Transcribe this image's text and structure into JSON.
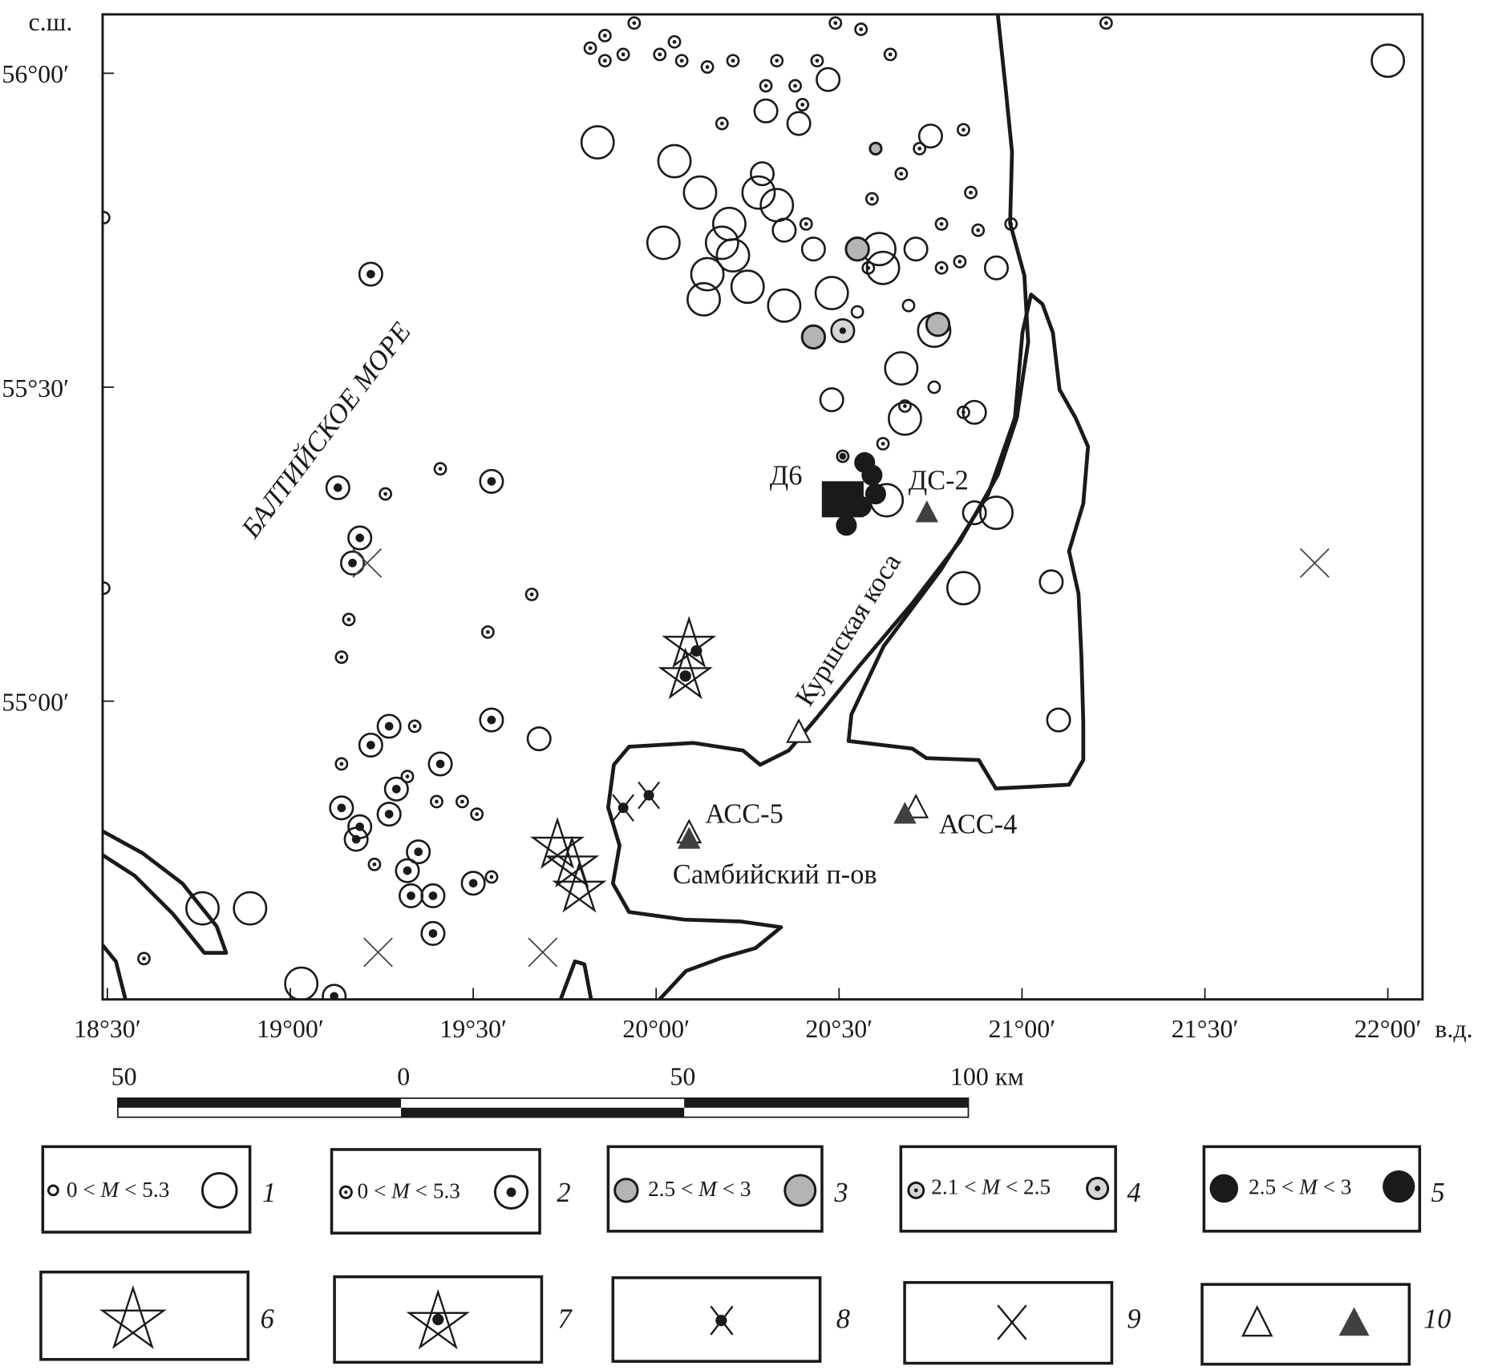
{
  "axes": {
    "lat_unit": "с.ш.",
    "lon_unit": "в.д.",
    "lat_ticks": [
      {
        "value": 56.0,
        "label": "56°00′"
      },
      {
        "value": 55.5,
        "label": "55°30′"
      },
      {
        "value": 55.0,
        "label": "55°00′"
      }
    ],
    "lon_ticks": [
      {
        "value": 18.5,
        "label": "18°30′"
      },
      {
        "value": 19.0,
        "label": "19°00′"
      },
      {
        "value": 19.5,
        "label": "19°30′"
      },
      {
        "value": 20.0,
        "label": "20°00′"
      },
      {
        "value": 20.5,
        "label": "20°30′"
      },
      {
        "value": 21.0,
        "label": "21°00′"
      },
      {
        "value": 21.5,
        "label": "21°30′"
      },
      {
        "value": 22.0,
        "label": "22°00′"
      }
    ]
  },
  "labels": {
    "sea": "БАЛТИЙСКОЕ МОРЕ",
    "spit": "Куршская коса",
    "peninsula": "Самбийский п-ов",
    "d6": "Д6",
    "ds2": "ДС-2",
    "acc5": "АСС-5",
    "acc4": "АСС-4"
  },
  "scale_bar": {
    "labels": [
      "50",
      "0",
      "50",
      "100 км"
    ]
  },
  "legend": [
    {
      "num": "1",
      "text_pre": "0 < ",
      "m": "M",
      "text_post": " < 5.3",
      "symbol": "open-circle"
    },
    {
      "num": "2",
      "text_pre": "0 < ",
      "m": "M",
      "text_post": " < 5.3",
      "symbol": "dot-circle"
    },
    {
      "num": "3",
      "text_pre": "2.5 < ",
      "m": "M",
      "text_post": " < 3",
      "symbol": "gray-circle"
    },
    {
      "num": "4",
      "text_pre": "2.1 < ",
      "m": "M",
      "text_post": " < 2.5",
      "symbol": "gray-dot-circle"
    },
    {
      "num": "5",
      "text_pre": "2.5 < ",
      "m": "M",
      "text_post": " < 3",
      "symbol": "black-circle"
    },
    {
      "num": "6",
      "symbol": "star"
    },
    {
      "num": "7",
      "symbol": "star-dot"
    },
    {
      "num": "8",
      "symbol": "cross-dot"
    },
    {
      "num": "9",
      "symbol": "cross"
    },
    {
      "num": "10",
      "symbol": "triangles"
    }
  ],
  "colors": {
    "ink": "#1a1a1a",
    "gray_fill": "#b4b4b4",
    "light_gray_fill": "#d6d6d6",
    "station_fill": "#404040"
  },
  "events": [
    [
      22.0,
      56.02,
      1,
      "l"
    ],
    [
      19.84,
      55.89,
      1,
      "l"
    ],
    [
      20.05,
      55.86,
      1,
      "l"
    ],
    [
      20.12,
      55.81,
      1,
      "l"
    ],
    [
      20.29,
      55.84,
      1,
      "m"
    ],
    [
      20.33,
      55.79,
      1,
      "l"
    ],
    [
      20.2,
      55.76,
      1,
      "l"
    ],
    [
      20.02,
      55.73,
      1,
      "l"
    ],
    [
      20.35,
      55.75,
      1,
      "m"
    ],
    [
      20.21,
      55.71,
      1,
      "l"
    ],
    [
      20.14,
      55.68,
      1,
      "l"
    ],
    [
      20.13,
      55.64,
      1,
      "l"
    ],
    [
      20.25,
      55.66,
      1,
      "l"
    ],
    [
      20.35,
      55.63,
      1,
      "l"
    ],
    [
      20.48,
      55.65,
      1,
      "l"
    ],
    [
      20.43,
      55.72,
      1,
      "m"
    ],
    [
      20.71,
      55.72,
      1,
      "m"
    ],
    [
      20.75,
      55.9,
      1,
      "m"
    ],
    [
      20.47,
      55.99,
      1,
      "m"
    ],
    [
      20.3,
      55.94,
      1,
      "m"
    ],
    [
      20.39,
      55.92,
      1,
      "m"
    ],
    [
      20.93,
      55.69,
      1,
      "m"
    ],
    [
      20.28,
      55.81,
      1,
      "l"
    ],
    [
      20.67,
      55.53,
      1,
      "l"
    ],
    [
      20.48,
      55.48,
      1,
      "m"
    ],
    [
      20.68,
      55.45,
      1,
      "l"
    ],
    [
      20.69,
      55.63,
      1,
      "s"
    ],
    [
      20.55,
      55.62,
      1,
      "s"
    ],
    [
      20.76,
      55.5,
      1,
      "s"
    ],
    [
      20.87,
      55.46,
      1,
      "m"
    ],
    [
      20.87,
      55.3,
      1,
      "m"
    ],
    [
      20.93,
      55.3,
      1,
      "l"
    ],
    [
      20.84,
      55.18,
      1,
      "l"
    ],
    [
      21.08,
      55.19,
      1,
      "m"
    ],
    [
      21.1,
      54.97,
      1,
      "m"
    ],
    [
      19.68,
      54.94,
      1,
      "m"
    ],
    [
      18.76,
      54.67,
      1,
      "l"
    ],
    [
      18.89,
      54.67,
      1,
      "l"
    ],
    [
      19.03,
      54.55,
      1,
      "l"
    ],
    [
      18.49,
      55.77,
      1,
      "s"
    ],
    [
      18.49,
      55.18,
      1,
      "s"
    ],
    [
      20.61,
      55.72,
      1,
      "l"
    ],
    [
      20.62,
      55.69,
      1,
      "l"
    ],
    [
      20.76,
      55.59,
      1,
      "l"
    ],
    [
      20.63,
      55.32,
      1,
      "l"
    ],
    [
      20.18,
      55.73,
      1,
      "l"
    ],
    [
      19.22,
      55.68,
      2,
      "m"
    ],
    [
      19.13,
      55.34,
      2,
      "m"
    ],
    [
      19.55,
      55.35,
      2,
      "m"
    ],
    [
      19.26,
      55.33,
      2,
      "s"
    ],
    [
      19.41,
      55.37,
      2,
      "s"
    ],
    [
      19.19,
      55.26,
      2,
      "m"
    ],
    [
      19.17,
      55.22,
      2,
      "m"
    ],
    [
      19.66,
      55.17,
      2,
      "s"
    ],
    [
      19.16,
      55.13,
      2,
      "s"
    ],
    [
      19.54,
      55.11,
      2,
      "s"
    ],
    [
      19.14,
      55.07,
      2,
      "s"
    ],
    [
      19.55,
      54.97,
      2,
      "m"
    ],
    [
      19.27,
      54.96,
      2,
      "m"
    ],
    [
      19.34,
      54.96,
      2,
      "s"
    ],
    [
      19.22,
      54.93,
      2,
      "m"
    ],
    [
      19.14,
      54.9,
      2,
      "s"
    ],
    [
      19.41,
      54.9,
      2,
      "m"
    ],
    [
      19.32,
      54.88,
      2,
      "s"
    ],
    [
      19.29,
      54.86,
      2,
      "m"
    ],
    [
      19.4,
      54.84,
      2,
      "s"
    ],
    [
      19.47,
      54.84,
      2,
      "s"
    ],
    [
      19.14,
      54.83,
      2,
      "m"
    ],
    [
      19.19,
      54.8,
      2,
      "m"
    ],
    [
      19.27,
      54.82,
      2,
      "m"
    ],
    [
      19.18,
      54.78,
      2,
      "m"
    ],
    [
      19.51,
      54.82,
      2,
      "s"
    ],
    [
      19.35,
      54.76,
      2,
      "m"
    ],
    [
      19.23,
      54.74,
      2,
      "s"
    ],
    [
      19.5,
      54.71,
      2,
      "m"
    ],
    [
      19.55,
      54.72,
      2,
      "s"
    ],
    [
      19.32,
      54.73,
      2,
      "m"
    ],
    [
      19.33,
      54.69,
      2,
      "m"
    ],
    [
      19.39,
      54.69,
      2,
      "m"
    ],
    [
      19.39,
      54.63,
      2,
      "m"
    ],
    [
      18.6,
      54.59,
      2,
      "s"
    ],
    [
      19.12,
      54.53,
      2,
      "m"
    ],
    [
      19.82,
      56.04,
      2,
      "s"
    ],
    [
      19.86,
      56.02,
      2,
      "s"
    ],
    [
      19.91,
      56.03,
      2,
      "s"
    ],
    [
      19.86,
      56.06,
      2,
      "s"
    ],
    [
      19.94,
      56.08,
      2,
      "s"
    ],
    [
      20.01,
      56.03,
      2,
      "s"
    ],
    [
      20.05,
      56.05,
      2,
      "s"
    ],
    [
      20.07,
      56.02,
      2,
      "s"
    ],
    [
      20.14,
      56.01,
      2,
      "s"
    ],
    [
      20.21,
      56.02,
      2,
      "s"
    ],
    [
      20.33,
      56.02,
      2,
      "s"
    ],
    [
      20.3,
      55.98,
      2,
      "s"
    ],
    [
      20.38,
      55.98,
      2,
      "s"
    ],
    [
      20.44,
      56.02,
      2,
      "s"
    ],
    [
      20.18,
      55.92,
      2,
      "s"
    ],
    [
      20.4,
      55.95,
      2,
      "s"
    ],
    [
      20.64,
      56.03,
      2,
      "s"
    ],
    [
      20.49,
      56.08,
      2,
      "s"
    ],
    [
      20.56,
      56.07,
      2,
      "s"
    ],
    [
      21.23,
      56.08,
      2,
      "s"
    ],
    [
      20.84,
      55.91,
      2,
      "s"
    ],
    [
      20.86,
      55.81,
      2,
      "s"
    ],
    [
      20.72,
      55.88,
      2,
      "s"
    ],
    [
      20.67,
      55.84,
      2,
      "s"
    ],
    [
      20.59,
      55.8,
      2,
      "s"
    ],
    [
      20.78,
      55.76,
      2,
      "s"
    ],
    [
      20.88,
      55.75,
      2,
      "s"
    ],
    [
      20.97,
      55.76,
      2,
      "s"
    ],
    [
      20.83,
      55.7,
      2,
      "s"
    ],
    [
      20.78,
      55.69,
      2,
      "s"
    ],
    [
      20.58,
      55.69,
      2,
      "s"
    ],
    [
      20.62,
      55.41,
      2,
      "s"
    ],
    [
      20.68,
      55.47,
      2,
      "s"
    ],
    [
      20.84,
      55.46,
      2,
      "s"
    ],
    [
      20.41,
      55.76,
      2,
      "s"
    ],
    [
      20.43,
      55.58,
      3,
      "m"
    ],
    [
      20.6,
      55.88,
      3,
      "s"
    ],
    [
      20.55,
      55.72,
      3,
      "m"
    ],
    [
      20.77,
      55.6,
      3,
      "m"
    ],
    [
      20.51,
      55.59,
      4,
      "m"
    ],
    [
      20.51,
      55.39,
      4,
      "s"
    ],
    [
      20.57,
      55.38,
      5,
      "s"
    ],
    [
      20.59,
      55.36,
      5,
      "s"
    ],
    [
      20.6,
      55.33,
      5,
      "s"
    ],
    [
      20.52,
      55.28,
      5,
      "s"
    ],
    [
      20.56,
      55.31,
      5,
      "s"
    ],
    [
      20.09,
      55.09,
      6,
      "m"
    ],
    [
      20.08,
      55.04,
      6,
      "m"
    ],
    [
      19.73,
      54.77,
      6,
      "m"
    ],
    [
      19.77,
      54.74,
      6,
      "m"
    ],
    [
      19.79,
      54.7,
      6,
      "m"
    ],
    [
      20.11,
      55.08,
      7,
      "m"
    ],
    [
      20.08,
      55.04,
      7,
      "m"
    ],
    [
      19.91,
      54.83,
      8,
      "m"
    ],
    [
      19.98,
      54.85,
      8,
      "m"
    ],
    [
      21.8,
      55.22,
      9,
      "m"
    ],
    [
      19.24,
      54.6,
      9,
      "m"
    ],
    [
      19.69,
      54.6,
      9,
      "m"
    ],
    [
      19.21,
      55.22,
      9,
      "m"
    ]
  ],
  "platform_d6": [
    20.51,
    55.32
  ],
  "stations": [
    {
      "lon": 20.39,
      "lat": 54.95,
      "filled": false
    },
    {
      "lon": 20.71,
      "lat": 54.83,
      "filled": false
    },
    {
      "lon": 20.09,
      "lat": 54.79,
      "filled": false
    },
    {
      "lon": 20.74,
      "lat": 55.3,
      "filled": true
    },
    {
      "lon": 20.09,
      "lat": 54.78,
      "filled": true
    },
    {
      "lon": 20.68,
      "lat": 54.82,
      "filled": true
    }
  ]
}
